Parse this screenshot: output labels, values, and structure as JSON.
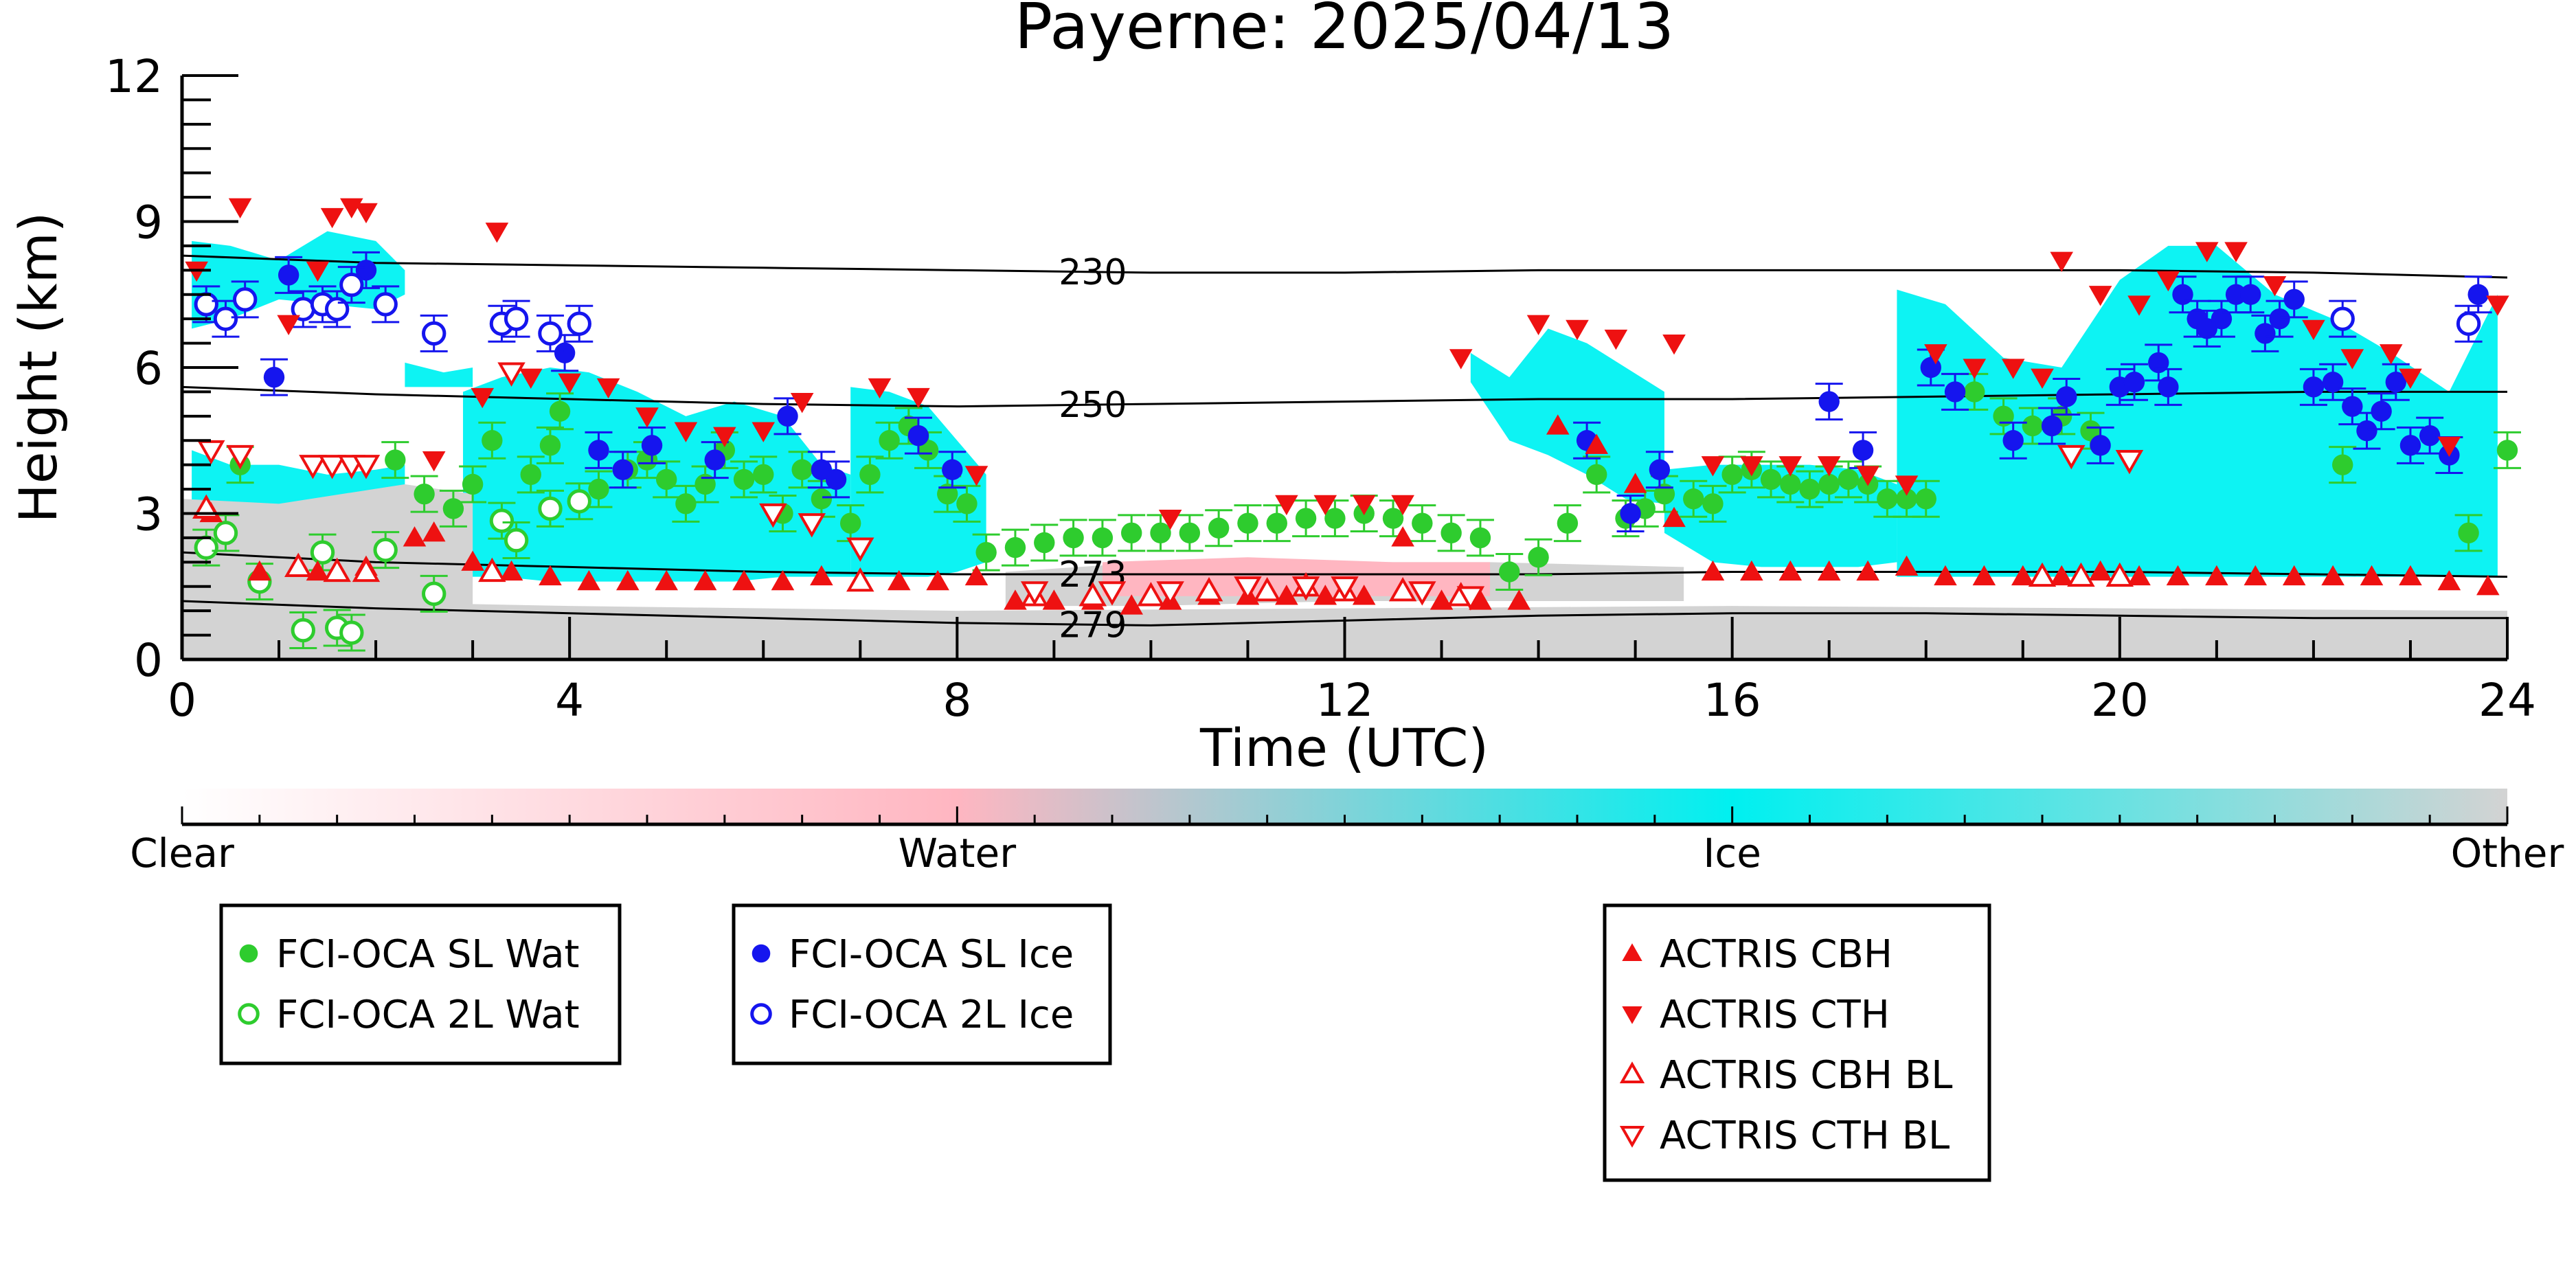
{
  "chart_data": {
    "type": "scatter",
    "title": "Payerne: 2025/04/13",
    "xlabel": "Time (UTC)",
    "ylabel": "Height (km)",
    "xlim": [
      0,
      24
    ],
    "ylim": [
      0,
      12
    ],
    "x_ticks": [
      0,
      4,
      8,
      12,
      16,
      20,
      24
    ],
    "y_ticks": [
      0,
      3,
      6,
      9,
      12
    ],
    "isotherms": [
      {
        "label": "230",
        "label_x": 9.4,
        "x": [
          0,
          2,
          4,
          6,
          8,
          10,
          12,
          14,
          16,
          18,
          20,
          22,
          24
        ],
        "y": [
          8.3,
          8.15,
          8.1,
          8.05,
          8.0,
          7.95,
          7.95,
          8.0,
          8.0,
          8.0,
          8.0,
          7.95,
          7.85
        ]
      },
      {
        "label": "250",
        "label_x": 9.4,
        "x": [
          0,
          2,
          4,
          6,
          8,
          10,
          12,
          14,
          16,
          18,
          20,
          22,
          24
        ],
        "y": [
          5.6,
          5.45,
          5.35,
          5.25,
          5.2,
          5.25,
          5.3,
          5.35,
          5.35,
          5.4,
          5.45,
          5.5,
          5.5
        ]
      },
      {
        "label": "273",
        "label_x": 9.4,
        "x": [
          0,
          2,
          4,
          6,
          8,
          10,
          12,
          14,
          16,
          18,
          20,
          22,
          24
        ],
        "y": [
          2.2,
          2.0,
          1.9,
          1.8,
          1.75,
          1.75,
          1.75,
          1.75,
          1.8,
          1.8,
          1.8,
          1.75,
          1.7
        ]
      },
      {
        "label": "279",
        "label_x": 9.4,
        "x": [
          0,
          2,
          4,
          6,
          8,
          10,
          12,
          14,
          16,
          18,
          20,
          22,
          24
        ],
        "y": [
          1.2,
          1.05,
          0.95,
          0.85,
          0.75,
          0.7,
          0.8,
          0.9,
          0.95,
          0.95,
          0.9,
          0.85,
          0.85
        ]
      }
    ],
    "classification_regions": [
      {
        "class": "Ice",
        "x": [
          0.1,
          0.5,
          1.0,
          1.5,
          2.0,
          2.3
        ],
        "y_top": [
          8.6,
          8.5,
          8.2,
          8.8,
          8.6,
          8.0
        ],
        "y_bottom": [
          6.8,
          7.0,
          7.4,
          7.3,
          7.2,
          7.5
        ]
      },
      {
        "class": "Ice",
        "x": [
          2.3,
          2.7,
          3.0
        ],
        "y_top": [
          6.1,
          5.9,
          6.0
        ],
        "y_bottom": [
          5.6,
          5.6,
          5.6
        ]
      },
      {
        "class": "Ice",
        "x": [
          0.1,
          0.5,
          1.0,
          1.5,
          2.0,
          2.3
        ],
        "y_top": [
          4.3,
          4.0,
          4.0,
          3.8,
          3.9,
          4.0
        ],
        "y_bottom": [
          2.5,
          2.6,
          2.5,
          2.4,
          2.4,
          2.5
        ]
      },
      {
        "class": "Ice",
        "x": [
          2.9,
          3.3,
          3.8,
          4.2,
          4.7,
          5.2,
          5.7,
          6.2,
          6.6,
          6.9
        ],
        "y_top": [
          5.5,
          5.8,
          6.0,
          5.9,
          5.5,
          5.0,
          5.3,
          5.0,
          4.0,
          3.8
        ],
        "y_bottom": [
          1.7,
          1.7,
          1.6,
          1.6,
          1.6,
          1.6,
          1.6,
          1.7,
          1.7,
          1.7
        ]
      },
      {
        "class": "Ice",
        "x": [
          6.9,
          7.3,
          7.7,
          8.0,
          8.3
        ],
        "y_top": [
          5.6,
          5.5,
          5.2,
          4.5,
          3.8
        ],
        "y_bottom": [
          1.7,
          1.7,
          1.7,
          1.8,
          2.0
        ]
      },
      {
        "class": "Ice",
        "x": [
          13.3,
          13.7,
          14.1,
          14.5,
          14.9,
          15.3
        ],
        "y_top": [
          6.3,
          5.8,
          6.8,
          6.5,
          6.0,
          5.5
        ],
        "y_bottom": [
          5.7,
          4.5,
          4.2,
          3.8,
          3.3,
          3.2
        ]
      },
      {
        "class": "Ice",
        "x": [
          15.3,
          15.8,
          16.3,
          16.8,
          17.3,
          17.7
        ],
        "y_top": [
          3.9,
          4.0,
          4.0,
          4.0,
          3.9,
          3.6
        ],
        "y_bottom": [
          2.6,
          2.0,
          1.9,
          1.9,
          1.9,
          2.0
        ]
      },
      {
        "class": "Ice",
        "x": [
          17.7,
          18.2,
          18.8,
          19.4,
          20.0,
          20.5,
          21.0,
          21.6,
          22.2,
          22.8,
          23.4,
          23.9
        ],
        "y_top": [
          7.6,
          7.3,
          6.2,
          6.0,
          7.8,
          8.5,
          8.5,
          7.5,
          7.0,
          6.3,
          5.5,
          7.5
        ],
        "y_bottom": [
          1.7,
          1.7,
          1.7,
          1.7,
          1.7,
          1.7,
          1.7,
          1.7,
          1.7,
          1.7,
          1.7,
          1.7
        ]
      },
      {
        "class": "Other",
        "x": [
          0.0,
          4,
          8,
          12,
          16,
          20,
          24
        ],
        "y_top": [
          1.25,
          1.1,
          1.0,
          1.05,
          1.1,
          1.05,
          1.0
        ],
        "y_bottom": [
          0,
          0,
          0,
          0,
          0,
          0,
          0
        ]
      },
      {
        "class": "Other",
        "x": [
          8.5,
          10,
          12,
          13.5,
          15.5
        ],
        "y_top": [
          1.8,
          2.0,
          2.0,
          2.0,
          1.9
        ],
        "y_bottom": [
          1.1,
          1.1,
          1.2,
          1.2,
          1.2
        ]
      },
      {
        "class": "Water",
        "x": [
          9.5,
          11,
          12.5,
          13.5
        ],
        "y_top": [
          2.0,
          2.1,
          2.0,
          2.0
        ],
        "y_bottom": [
          1.3,
          1.3,
          1.3,
          1.3
        ]
      },
      {
        "class": "Other",
        "x": [
          0.0,
          1.0,
          2.3,
          3.0
        ],
        "y_top": [
          3.3,
          3.2,
          3.6,
          3.4
        ],
        "y_bottom": [
          1.2,
          1.2,
          1.1,
          1.1
        ]
      }
    ],
    "series": [
      {
        "name": "FCI-OCA SL Wat",
        "marker": "filled-circle",
        "color": "#2ecc2e",
        "x": [
          0.6,
          2.2,
          2.5,
          2.8,
          3.0,
          3.2,
          3.6,
          3.8,
          3.9,
          4.3,
          4.6,
          4.8,
          5.0,
          5.2,
          5.4,
          5.6,
          5.8,
          6.0,
          6.2,
          6.4,
          6.6,
          6.9,
          7.1,
          7.3,
          7.5,
          7.7,
          7.9,
          8.1,
          8.3,
          8.6,
          8.9,
          9.2,
          9.5,
          9.8,
          10.1,
          10.4,
          10.7,
          11.0,
          11.3,
          11.6,
          11.9,
          12.2,
          12.5,
          12.8,
          13.1,
          13.4,
          13.7,
          14.0,
          14.3,
          14.6,
          14.9,
          15.1,
          15.3,
          15.6,
          15.8,
          16.0,
          16.2,
          16.4,
          16.6,
          16.8,
          17.0,
          17.2,
          17.4,
          17.6,
          17.8,
          18.0,
          18.5,
          18.8,
          19.1,
          19.4,
          19.7,
          22.3,
          23.6,
          24.0
        ],
        "y": [
          4.0,
          4.1,
          3.4,
          3.1,
          3.6,
          4.5,
          3.8,
          4.4,
          5.1,
          3.5,
          3.9,
          4.1,
          3.7,
          3.2,
          3.6,
          4.3,
          3.7,
          3.8,
          3.0,
          3.9,
          3.3,
          2.8,
          3.8,
          4.5,
          4.8,
          4.3,
          3.4,
          3.2,
          2.2,
          2.3,
          2.4,
          2.5,
          2.5,
          2.6,
          2.6,
          2.6,
          2.7,
          2.8,
          2.8,
          2.9,
          2.9,
          3.0,
          2.9,
          2.8,
          2.6,
          2.5,
          1.8,
          2.1,
          2.8,
          3.8,
          2.9,
          3.1,
          3.4,
          3.3,
          3.2,
          3.8,
          3.9,
          3.7,
          3.6,
          3.5,
          3.6,
          3.7,
          3.6,
          3.3,
          3.3,
          3.3,
          5.5,
          5.0,
          4.8,
          5.0,
          4.7,
          4.0,
          2.6,
          4.3
        ]
      },
      {
        "name": "FCI-OCA 2L Wat",
        "marker": "open-circle",
        "color": "#2ecc2e",
        "x": [
          0.25,
          0.45,
          0.8,
          1.25,
          1.45,
          1.6,
          1.75,
          2.1,
          2.6,
          3.3,
          3.45,
          3.8,
          4.1
        ],
        "y": [
          2.3,
          2.6,
          1.6,
          0.6,
          2.2,
          0.65,
          0.55,
          2.25,
          1.35,
          2.85,
          2.45,
          3.1,
          3.25
        ]
      },
      {
        "name": "FCI-OCA SL Ice",
        "marker": "filled-circle",
        "color": "#1515ee",
        "x": [
          0.95,
          1.1,
          1.9,
          3.95,
          4.3,
          4.55,
          4.85,
          5.5,
          6.25,
          6.6,
          6.75,
          7.6,
          7.95,
          14.5,
          14.95,
          15.25,
          17.0,
          17.35,
          18.05,
          18.3,
          18.9,
          19.3,
          19.45,
          19.8,
          20.0,
          20.15,
          20.4,
          20.5,
          20.65,
          20.8,
          20.9,
          21.05,
          21.2,
          21.35,
          21.5,
          21.65,
          21.8,
          22.0,
          22.2,
          22.4,
          22.55,
          22.7,
          22.85,
          23.0,
          23.2,
          23.4,
          23.7
        ],
        "y": [
          5.8,
          7.9,
          8.0,
          6.3,
          4.3,
          3.9,
          4.4,
          4.1,
          5.0,
          3.9,
          3.7,
          4.6,
          3.9,
          4.5,
          3.0,
          3.9,
          5.3,
          4.3,
          6.0,
          5.5,
          4.5,
          4.8,
          5.4,
          4.4,
          5.6,
          5.7,
          6.1,
          5.6,
          7.5,
          7.0,
          6.8,
          7.0,
          7.5,
          7.5,
          6.7,
          7.0,
          7.4,
          5.6,
          5.7,
          5.2,
          4.7,
          5.1,
          5.7,
          4.4,
          4.6,
          4.2,
          7.5
        ]
      },
      {
        "name": "FCI-OCA 2L Ice",
        "marker": "open-circle",
        "color": "#1515ee",
        "x": [
          0.25,
          0.45,
          0.65,
          1.25,
          1.45,
          1.6,
          1.75,
          2.1,
          2.6,
          3.3,
          3.45,
          3.8,
          4.1,
          22.3,
          23.6
        ],
        "y": [
          7.3,
          7.0,
          7.4,
          7.2,
          7.3,
          7.2,
          7.7,
          7.3,
          6.7,
          6.9,
          7.0,
          6.7,
          6.9,
          7.0,
          6.9
        ]
      },
      {
        "name": "ACTRIS CBH",
        "marker": "triangle-up",
        "color": "#ee1111",
        "x": [
          0.3,
          0.8,
          1.4,
          1.9,
          2.4,
          2.6,
          3.0,
          3.4,
          3.8,
          4.2,
          4.6,
          5.0,
          5.4,
          5.8,
          6.2,
          6.6,
          7.0,
          7.4,
          7.8,
          8.2,
          8.6,
          9.0,
          9.4,
          9.8,
          10.2,
          10.6,
          11.0,
          11.4,
          11.8,
          12.2,
          12.6,
          13.0,
          13.4,
          13.8,
          14.2,
          14.6,
          15.0,
          15.4,
          15.8,
          16.2,
          16.6,
          17.0,
          17.4,
          17.8,
          18.2,
          18.6,
          19.0,
          19.4,
          19.8,
          20.2,
          20.6,
          21.0,
          21.4,
          21.8,
          22.2,
          22.6,
          23.0,
          23.4,
          23.8
        ],
        "y": [
          3.0,
          1.8,
          1.8,
          1.9,
          2.5,
          2.6,
          2.0,
          1.8,
          1.7,
          1.6,
          1.6,
          1.6,
          1.6,
          1.6,
          1.6,
          1.7,
          1.6,
          1.6,
          1.6,
          1.7,
          1.2,
          1.2,
          1.2,
          1.1,
          1.2,
          1.3,
          1.3,
          1.3,
          1.3,
          1.3,
          2.5,
          1.2,
          1.2,
          1.2,
          4.8,
          4.4,
          3.6,
          2.9,
          1.8,
          1.8,
          1.8,
          1.8,
          1.8,
          1.9,
          1.7,
          1.7,
          1.7,
          1.7,
          1.8,
          1.7,
          1.7,
          1.7,
          1.7,
          1.7,
          1.7,
          1.7,
          1.7,
          1.6,
          1.5
        ]
      },
      {
        "name": "ACTRIS CTH",
        "marker": "triangle-down",
        "color": "#ee1111",
        "x": [
          0.15,
          0.6,
          1.1,
          1.4,
          1.55,
          1.75,
          1.9,
          2.6,
          3.1,
          3.25,
          3.6,
          4.0,
          4.4,
          4.8,
          5.2,
          5.6,
          6.0,
          6.4,
          7.2,
          7.6,
          8.2,
          10.2,
          11.4,
          11.8,
          12.2,
          12.6,
          13.2,
          14.0,
          14.4,
          14.8,
          15.4,
          15.8,
          16.2,
          16.6,
          17.0,
          17.4,
          17.8,
          18.1,
          18.5,
          18.9,
          19.2,
          19.4,
          19.8,
          20.2,
          20.5,
          20.9,
          21.2,
          21.6,
          22.0,
          22.4,
          22.8,
          23.0,
          23.4,
          23.9
        ],
        "y": [
          8.0,
          9.3,
          6.9,
          8.0,
          9.1,
          9.3,
          9.2,
          4.1,
          5.4,
          8.8,
          5.8,
          5.7,
          5.6,
          5.0,
          4.7,
          4.6,
          4.7,
          5.3,
          5.6,
          5.4,
          3.8,
          2.9,
          3.2,
          3.2,
          3.2,
          3.2,
          6.2,
          6.9,
          6.8,
          6.6,
          6.5,
          4.0,
          4.0,
          4.0,
          4.0,
          3.8,
          3.6,
          6.3,
          6.0,
          6.0,
          5.8,
          8.2,
          7.5,
          7.3,
          7.8,
          8.4,
          8.4,
          7.7,
          6.8,
          6.2,
          6.3,
          5.8,
          4.4,
          7.3
        ]
      },
      {
        "name": "ACTRIS CBH BL",
        "marker": "open-triangle-up",
        "color": "#ee1111",
        "x": [
          0.25,
          1.2,
          1.6,
          1.9,
          3.2,
          7.0,
          8.8,
          9.4,
          10.0,
          10.6,
          11.2,
          11.6,
          12.0,
          12.6,
          13.2,
          19.2,
          19.6,
          20.0
        ],
        "y": [
          3.1,
          1.9,
          1.8,
          1.8,
          1.8,
          1.6,
          1.3,
          1.3,
          1.3,
          1.4,
          1.4,
          1.5,
          1.4,
          1.4,
          1.3,
          1.7,
          1.7,
          1.7
        ]
      },
      {
        "name": "ACTRIS CTH BL",
        "marker": "open-triangle-down",
        "color": "#ee1111",
        "x": [
          0.3,
          0.6,
          1.35,
          1.55,
          1.75,
          1.9,
          3.4,
          6.1,
          6.5,
          7.0,
          8.8,
          9.6,
          10.2,
          11.0,
          11.6,
          12.0,
          12.8,
          13.3,
          19.5,
          20.1
        ],
        "y": [
          4.3,
          4.2,
          4.0,
          4.0,
          4.0,
          4.0,
          5.9,
          3.0,
          2.8,
          2.3,
          1.4,
          1.4,
          1.4,
          1.5,
          1.5,
          1.5,
          1.4,
          1.3,
          4.2,
          4.1
        ]
      }
    ],
    "colorbar": {
      "labels": [
        "Clear",
        "Water",
        "Ice",
        "Other"
      ],
      "colors": [
        "#ffffff",
        "#ffb6c1",
        "#00ffff",
        "#d3d3d3"
      ]
    },
    "legend_placement": "bottom",
    "grid": false
  },
  "legends": {
    "group1": [
      "FCI-OCA SL Wat",
      "FCI-OCA 2L Wat"
    ],
    "group2": [
      "FCI-OCA SL Ice",
      "FCI-OCA 2L Ice"
    ],
    "group3": [
      "ACTRIS CBH",
      "ACTRIS CTH",
      "ACTRIS CBH BL",
      "ACTRIS CTH BL"
    ]
  }
}
